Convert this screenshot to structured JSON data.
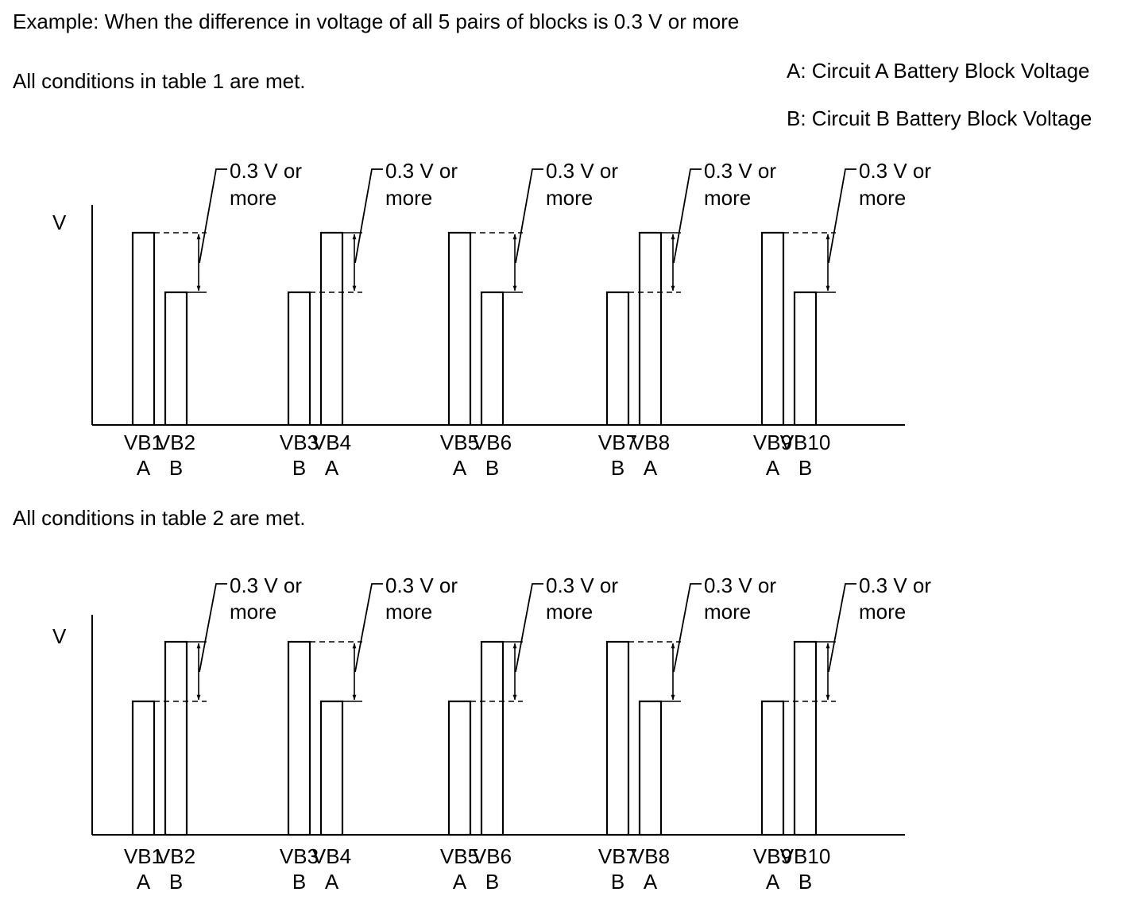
{
  "header": {
    "example": "Example: When the difference in voltage of all 5 pairs of blocks is 0.3 V or more",
    "legend_a": "A: Circuit A Battery Block Voltage",
    "legend_b": "B: Circuit B Battery Block Voltage"
  },
  "panels": [
    {
      "caption": "All conditions in table 1 are met.",
      "y_label": "V",
      "diff_label_line1": "0.3 V or",
      "diff_label_line2": "more",
      "pairs": [
        {
          "blocks": [
            {
              "name": "VB1",
              "circuit": "A",
              "level": "high"
            },
            {
              "name": "VB2",
              "circuit": "B",
              "level": "low"
            }
          ]
        },
        {
          "blocks": [
            {
              "name": "VB3",
              "circuit": "B",
              "level": "low"
            },
            {
              "name": "VB4",
              "circuit": "A",
              "level": "high"
            }
          ]
        },
        {
          "blocks": [
            {
              "name": "VB5",
              "circuit": "A",
              "level": "high"
            },
            {
              "name": "VB6",
              "circuit": "B",
              "level": "low"
            }
          ]
        },
        {
          "blocks": [
            {
              "name": "VB7",
              "circuit": "B",
              "level": "low"
            },
            {
              "name": "VB8",
              "circuit": "A",
              "level": "high"
            }
          ]
        },
        {
          "blocks": [
            {
              "name": "VB9",
              "circuit": "A",
              "level": "high"
            },
            {
              "name": "VB10",
              "circuit": "B",
              "level": "low"
            }
          ]
        }
      ]
    },
    {
      "caption": "All conditions in table 2 are met.",
      "y_label": "V",
      "diff_label_line1": "0.3 V or",
      "diff_label_line2": "more",
      "pairs": [
        {
          "blocks": [
            {
              "name": "VB1",
              "circuit": "A",
              "level": "low"
            },
            {
              "name": "VB2",
              "circuit": "B",
              "level": "high"
            }
          ]
        },
        {
          "blocks": [
            {
              "name": "VB3",
              "circuit": "B",
              "level": "high"
            },
            {
              "name": "VB4",
              "circuit": "A",
              "level": "low"
            }
          ]
        },
        {
          "blocks": [
            {
              "name": "VB5",
              "circuit": "A",
              "level": "low"
            },
            {
              "name": "VB6",
              "circuit": "B",
              "level": "high"
            }
          ]
        },
        {
          "blocks": [
            {
              "name": "VB7",
              "circuit": "B",
              "level": "high"
            },
            {
              "name": "VB8",
              "circuit": "A",
              "level": "low"
            }
          ]
        },
        {
          "blocks": [
            {
              "name": "VB9",
              "circuit": "A",
              "level": "low"
            },
            {
              "name": "VB10",
              "circuit": "B",
              "level": "high"
            }
          ]
        }
      ]
    }
  ]
}
